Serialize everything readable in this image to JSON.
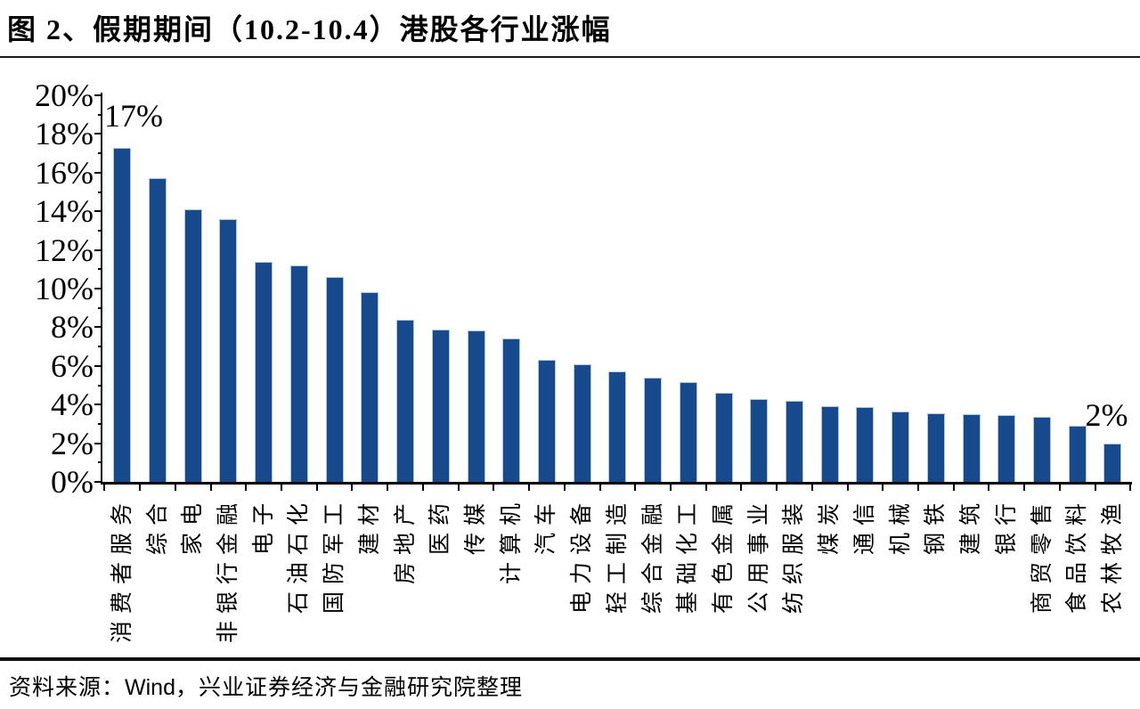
{
  "figure": {
    "title": "图 2、假期期间（10.2-10.4）港股各行业涨幅"
  },
  "footer": {
    "prefix": "资料来源：",
    "wind": "Wind",
    "suffix": "，兴业证券经济与金融研究院整理"
  },
  "chart_data": {
    "type": "bar",
    "title": "假期期间（10.2-10.4）港股各行业涨幅",
    "unit": "%",
    "categories": [
      "消费者服务",
      "综合",
      "家电",
      "非银行金融",
      "电子",
      "石油石化",
      "国防军工",
      "建材",
      "房地产",
      "医药",
      "传媒",
      "计算机",
      "汽车",
      "电力设备",
      "轻工制造",
      "综合金融",
      "基础化工",
      "有色金属",
      "公用事业",
      "纺织服装",
      "煤炭",
      "通信",
      "机械",
      "钢铁",
      "建筑",
      "银行",
      "商贸零售",
      "食品饮料",
      "农林牧渔"
    ],
    "values": [
      17.3,
      15.7,
      14.1,
      13.6,
      11.4,
      11.2,
      10.6,
      9.8,
      8.4,
      7.9,
      7.85,
      7.4,
      6.3,
      6.1,
      5.7,
      5.4,
      5.15,
      4.6,
      4.3,
      4.2,
      3.9,
      3.85,
      3.65,
      3.55,
      3.5,
      3.45,
      3.35,
      2.9,
      2.0
    ],
    "ylim": [
      0,
      20
    ],
    "y_tick_step": 2,
    "y_minor_tick_step": 1,
    "y_tick_labels": [
      "0%",
      "2%",
      "4%",
      "6%",
      "8%",
      "10%",
      "12%",
      "14%",
      "16%",
      "18%",
      "20%"
    ],
    "annotations": [
      {
        "bar_index": 0,
        "text": "17%",
        "placement": "axis"
      },
      {
        "bar_index": 28,
        "text": "2%",
        "placement": "above"
      }
    ],
    "bar_color": "#17498D",
    "bar_border_color": "#b3c6dc",
    "grid": false,
    "legend": null,
    "xlabel": "",
    "ylabel": ""
  }
}
